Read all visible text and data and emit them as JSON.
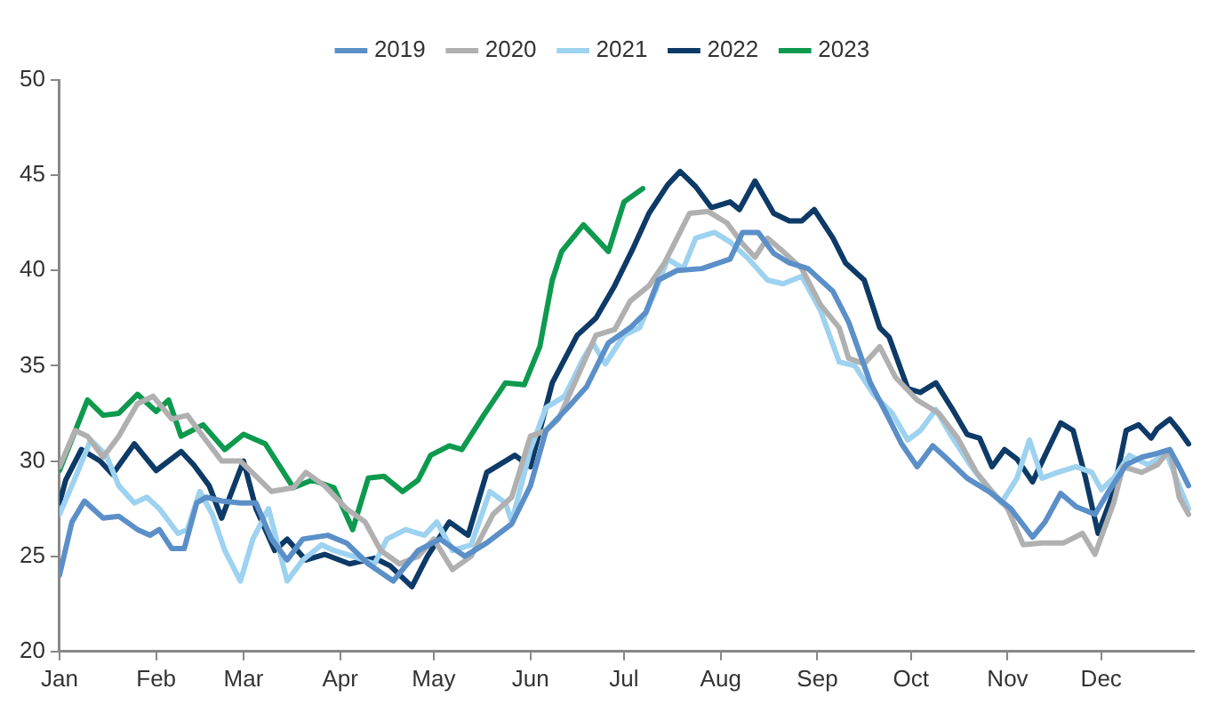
{
  "chart_data": {
    "type": "line",
    "xlim": [
      "--01-01",
      "--12-31"
    ],
    "xticks": [
      {
        "value": "--01-01",
        "label": "Jan"
      },
      {
        "value": "--02-01",
        "label": "Feb"
      },
      {
        "value": "--03-01",
        "label": "Mar"
      },
      {
        "value": "--04-01",
        "label": "Apr"
      },
      {
        "value": "--05-01",
        "label": "May"
      },
      {
        "value": "--06-01",
        "label": "Jun"
      },
      {
        "value": "--07-01",
        "label": "Jul"
      },
      {
        "value": "--08-01",
        "label": "Aug"
      },
      {
        "value": "--09-01",
        "label": "Sep"
      },
      {
        "value": "--10-01",
        "label": "Oct"
      },
      {
        "value": "--11-01",
        "label": "Nov"
      },
      {
        "value": "--12-01",
        "label": "Dec"
      }
    ],
    "ylim": [
      20,
      50
    ],
    "yticks": [
      20,
      25,
      30,
      35,
      40,
      45,
      50
    ],
    "grid": false,
    "legend": "top",
    "marker": "none",
    "line_style": "solid",
    "series": [
      {
        "name": "2019",
        "color": "#5b8fc8",
        "x": [
          "--01-01",
          "--01-05",
          "--01-09",
          "--01-15",
          "--01-20",
          "--01-26",
          "--01-30",
          "--02-02",
          "--02-06",
          "--02-10",
          "--02-14",
          "--02-17",
          "--02-22",
          "--02-28",
          "--03-05",
          "--03-10",
          "--03-15",
          "--03-20",
          "--03-28",
          "--04-03",
          "--04-10",
          "--04-18",
          "--04-26",
          "--05-03",
          "--05-11",
          "--05-18",
          "--05-26",
          "--06-01",
          "--06-06",
          "--06-13",
          "--06-19",
          "--06-26",
          "--07-03",
          "--07-08",
          "--07-12",
          "--07-18",
          "--07-26",
          "--08-04",
          "--08-08",
          "--08-13",
          "--08-18",
          "--08-23",
          "--08-29",
          "--09-06",
          "--09-11",
          "--09-18",
          "--09-24",
          "--09-28",
          "--10-03",
          "--10-08",
          "--10-12",
          "--10-19",
          "--10-26",
          "--11-02",
          "--11-09",
          "--11-13",
          "--11-18",
          "--11-23",
          "--11-29",
          "--12-03",
          "--12-09",
          "--12-14",
          "--12-19",
          "--12-23",
          "--12-26",
          "--12-29"
        ],
        "values": [
          24.0,
          26.8,
          27.9,
          27.0,
          27.1,
          26.4,
          26.1,
          26.4,
          25.4,
          25.4,
          27.8,
          28.1,
          27.9,
          27.8,
          27.8,
          25.9,
          24.8,
          25.9,
          26.1,
          25.7,
          24.6,
          23.7,
          25.3,
          25.9,
          25.0,
          25.7,
          26.7,
          28.7,
          31.6,
          32.8,
          33.9,
          36.2,
          37.0,
          37.8,
          39.5,
          40.0,
          40.1,
          40.6,
          42.0,
          42.0,
          40.9,
          40.4,
          40.1,
          38.9,
          37.3,
          34.1,
          32.2,
          30.9,
          29.7,
          30.8,
          30.2,
          29.1,
          28.4,
          27.5,
          26.0,
          26.8,
          28.3,
          27.6,
          27.2,
          28.3,
          29.8,
          30.2,
          30.4,
          30.6,
          29.7,
          28.7
        ]
      },
      {
        "name": "2020",
        "color": "#b0b0b0",
        "x": [
          "--01-01",
          "--01-06",
          "--01-10",
          "--01-15",
          "--01-20",
          "--01-26",
          "--01-31",
          "--02-06",
          "--02-11",
          "--02-16",
          "--02-22",
          "--02-28",
          "--03-05",
          "--03-10",
          "--03-17",
          "--03-21",
          "--03-27",
          "--04-03",
          "--04-09",
          "--04-14",
          "--04-20",
          "--04-26",
          "--05-01",
          "--05-07",
          "--05-13",
          "--05-20",
          "--05-26",
          "--06-01",
          "--06-06",
          "--06-10",
          "--06-16",
          "--06-22",
          "--06-28",
          "--07-03",
          "--07-09",
          "--07-14",
          "--07-18",
          "--07-22",
          "--07-28",
          "--08-03",
          "--08-08",
          "--08-12",
          "--08-16",
          "--08-21",
          "--08-27",
          "--09-02",
          "--09-08",
          "--09-11",
          "--09-16",
          "--09-21",
          "--09-26",
          "--10-03",
          "--10-10",
          "--10-16",
          "--10-22",
          "--10-27",
          "--11-01",
          "--11-06",
          "--11-12",
          "--11-19",
          "--11-25",
          "--11-29",
          "--12-05",
          "--12-08",
          "--12-14",
          "--12-19",
          "--12-23",
          "--12-26",
          "--12-29"
        ],
        "values": [
          29.7,
          31.6,
          31.3,
          30.2,
          31.3,
          33.0,
          33.4,
          32.2,
          32.4,
          31.3,
          30.0,
          30.0,
          29.2,
          28.4,
          28.6,
          29.4,
          28.7,
          27.5,
          26.8,
          25.3,
          24.6,
          25.0,
          25.9,
          24.3,
          25.0,
          27.2,
          28.1,
          31.3,
          31.6,
          32.2,
          34.4,
          36.6,
          36.9,
          38.4,
          39.2,
          40.4,
          41.7,
          43.0,
          43.1,
          42.5,
          41.4,
          40.7,
          41.7,
          41.0,
          40.1,
          38.2,
          37.0,
          35.4,
          35.1,
          36.0,
          34.4,
          33.2,
          32.5,
          31.2,
          29.4,
          28.4,
          27.5,
          25.6,
          25.7,
          25.7,
          26.2,
          25.1,
          27.8,
          29.7,
          29.4,
          29.8,
          30.6,
          28.1,
          27.2
        ]
      },
      {
        "name": "2021",
        "color": "#9dd2f0",
        "x": [
          "--01-01",
          "--01-06",
          "--01-11",
          "--01-16",
          "--01-20",
          "--01-25",
          "--01-29",
          "--02-02",
          "--02-08",
          "--02-11",
          "--02-15",
          "--02-19",
          "--02-23",
          "--02-28",
          "--03-04",
          "--03-09",
          "--03-15",
          "--03-20",
          "--03-26",
          "--03-30",
          "--04-05",
          "--04-12",
          "--04-16",
          "--04-22",
          "--04-28",
          "--05-02",
          "--05-07",
          "--05-13",
          "--05-19",
          "--05-24",
          "--05-26",
          "--06-01",
          "--06-06",
          "--06-12",
          "--06-18",
          "--06-21",
          "--06-25",
          "--07-01",
          "--07-06",
          "--07-11",
          "--07-15",
          "--07-20",
          "--07-24",
          "--07-30",
          "--08-04",
          "--08-10",
          "--08-16",
          "--08-21",
          "--08-27",
          "--09-02",
          "--09-08",
          "--09-13",
          "--09-19",
          "--09-25",
          "--09-30",
          "--10-04",
          "--10-09",
          "--10-14",
          "--10-20",
          "--10-26",
          "--10-30",
          "--11-04",
          "--11-08",
          "--11-12",
          "--11-17",
          "--11-23",
          "--11-28",
          "--12-01",
          "--12-05",
          "--12-10",
          "--12-16",
          "--12-22",
          "--12-25",
          "--12-29"
        ],
        "values": [
          27.2,
          29.1,
          31.1,
          30.3,
          28.7,
          27.8,
          28.1,
          27.5,
          26.2,
          26.4,
          28.4,
          27.2,
          25.3,
          23.7,
          25.9,
          27.5,
          23.7,
          24.8,
          25.6,
          25.3,
          25.0,
          24.6,
          25.9,
          26.4,
          26.1,
          26.8,
          25.3,
          25.6,
          28.4,
          27.8,
          26.8,
          30.6,
          32.8,
          33.4,
          35.4,
          36.2,
          35.1,
          36.6,
          37.0,
          38.9,
          40.6,
          40.1,
          41.7,
          42.0,
          41.5,
          40.6,
          39.5,
          39.3,
          39.7,
          37.9,
          35.2,
          35.0,
          33.5,
          32.5,
          31.1,
          31.6,
          32.7,
          31.3,
          29.8,
          28.5,
          27.8,
          29.1,
          31.1,
          29.1,
          29.4,
          29.7,
          29.4,
          28.5,
          29.1,
          30.3,
          29.8,
          30.4,
          29.1,
          27.5
        ]
      },
      {
        "name": "2022",
        "color": "#0d3a66",
        "x": [
          "--01-01",
          "--01-03",
          "--01-08",
          "--01-14",
          "--01-18",
          "--01-25",
          "--02-01",
          "--02-09",
          "--02-13",
          "--02-18",
          "--02-22",
          "--03-01",
          "--03-05",
          "--03-11",
          "--03-15",
          "--03-21",
          "--03-27",
          "--04-04",
          "--04-12",
          "--04-17",
          "--04-24",
          "--04-29",
          "--05-06",
          "--05-12",
          "--05-18",
          "--05-27",
          "--06-01",
          "--06-08",
          "--06-16",
          "--06-22",
          "--06-28",
          "--07-04",
          "--07-09",
          "--07-15",
          "--07-19",
          "--07-24",
          "--07-29",
          "--08-04",
          "--08-07",
          "--08-12",
          "--08-18",
          "--08-23",
          "--08-27",
          "--08-31",
          "--09-06",
          "--09-10",
          "--09-16",
          "--09-21",
          "--09-24",
          "--09-30",
          "--10-04",
          "--10-09",
          "--10-14",
          "--10-19",
          "--10-23",
          "--10-27",
          "--10-31",
          "--11-04",
          "--11-09",
          "--11-13",
          "--11-18",
          "--11-22",
          "--11-26",
          "--11-30",
          "--12-05",
          "--12-09",
          "--12-13",
          "--12-17",
          "--12-19",
          "--12-23",
          "--12-26",
          "--12-29"
        ],
        "values": [
          27.8,
          29.0,
          30.6,
          30.0,
          29.3,
          30.9,
          29.5,
          30.5,
          29.8,
          28.7,
          27.0,
          30.0,
          27.5,
          25.3,
          25.9,
          24.8,
          25.1,
          24.6,
          24.9,
          24.5,
          23.4,
          25.0,
          26.8,
          26.1,
          29.4,
          30.3,
          29.7,
          34.1,
          36.6,
          37.5,
          39.2,
          41.2,
          43.0,
          44.5,
          45.2,
          44.4,
          43.3,
          43.6,
          43.2,
          44.7,
          43.0,
          42.6,
          42.6,
          43.2,
          41.7,
          40.4,
          39.5,
          37.0,
          36.5,
          33.8,
          33.6,
          34.1,
          32.8,
          31.4,
          31.2,
          29.7,
          30.6,
          30.1,
          28.9,
          30.3,
          32.0,
          31.6,
          29.1,
          26.2,
          28.4,
          31.6,
          31.9,
          31.2,
          31.7,
          32.2,
          31.6,
          30.9
        ]
      },
      {
        "name": "2023",
        "color": "#0e9a4e",
        "x": [
          "--01-01",
          "--01-10",
          "--01-15",
          "--01-20",
          "--01-26",
          "--02-01",
          "--02-05",
          "--02-09",
          "--02-16",
          "--02-23",
          "--03-01",
          "--03-08",
          "--03-17",
          "--03-23",
          "--03-30",
          "--04-05",
          "--04-10",
          "--04-15",
          "--04-21",
          "--04-26",
          "--04-30",
          "--05-06",
          "--05-10",
          "--05-17",
          "--05-24",
          "--05-30",
          "--06-04",
          "--06-08",
          "--06-11",
          "--06-18",
          "--06-26",
          "--07-01",
          "--07-07"
        ],
        "values": [
          29.5,
          33.2,
          32.4,
          32.5,
          33.5,
          32.6,
          33.2,
          31.3,
          31.9,
          30.6,
          31.4,
          30.9,
          28.6,
          29.0,
          28.6,
          26.4,
          29.1,
          29.2,
          28.4,
          29.0,
          30.3,
          30.8,
          30.6,
          32.4,
          34.1,
          34.0,
          36.0,
          39.5,
          41.0,
          42.4,
          41.0,
          43.6,
          44.3
        ]
      }
    ]
  }
}
